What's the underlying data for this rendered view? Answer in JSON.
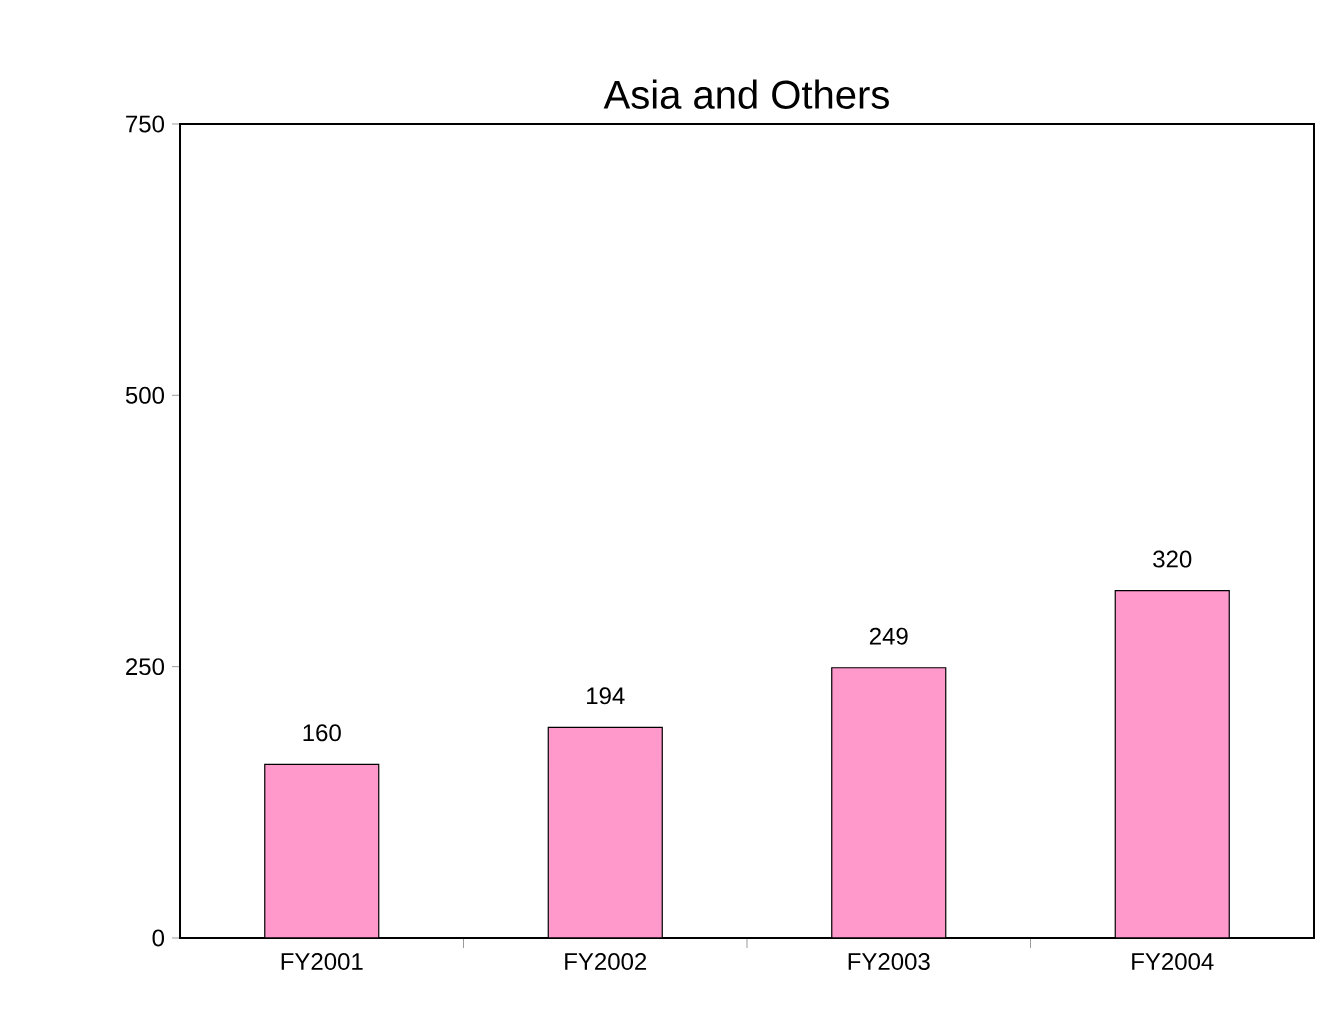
{
  "chart_data": {
    "type": "bar",
    "title": "Asia and Others",
    "categories": [
      "FY2001",
      "FY2002",
      "FY2003",
      "FY2004"
    ],
    "values": [
      160,
      194,
      249,
      320
    ],
    "color": "#ff99cc",
    "ylim": [
      0,
      750
    ],
    "yticks": [
      0,
      250,
      500,
      750
    ],
    "data_labels": true
  }
}
